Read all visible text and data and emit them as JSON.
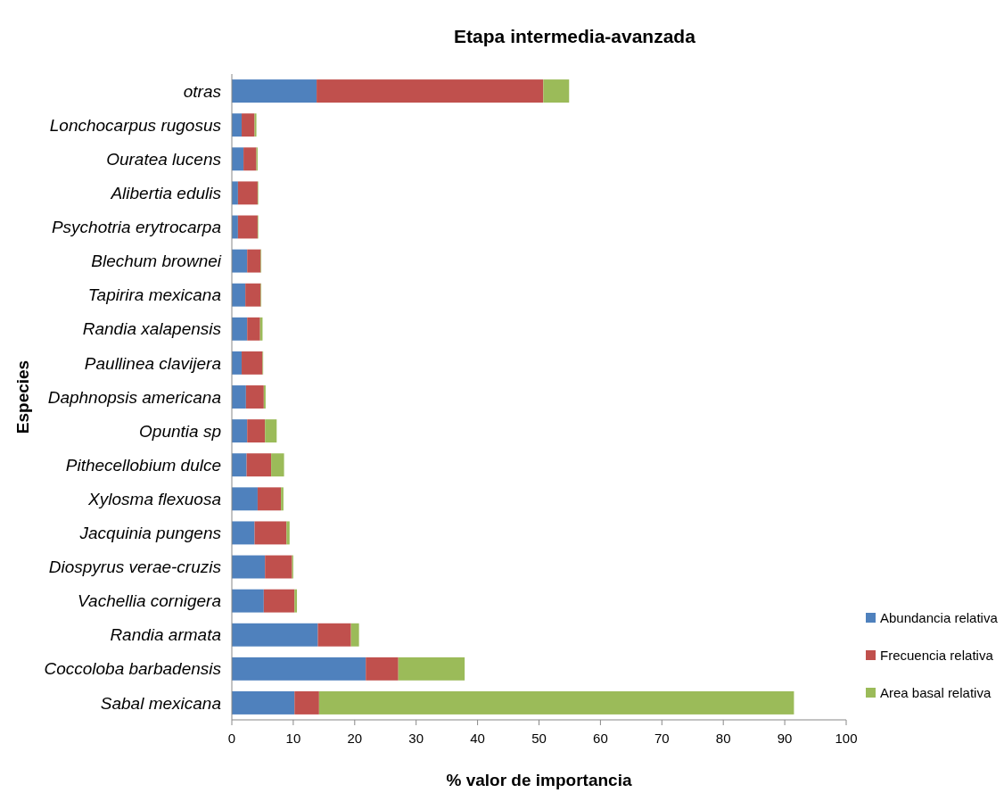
{
  "chart_data": {
    "type": "bar",
    "orientation": "horizontal",
    "stacked": true,
    "title": "Etapa intermedia-avanzada",
    "xlabel": "% valor de importancia",
    "ylabel": "Especies",
    "categories": [
      "otras",
      "Lonchocarpus rugosus",
      "Ouratea lucens",
      "Alibertia edulis",
      "Psychotria erytrocarpa",
      "Blechum brownei",
      "Tapirira mexicana",
      "Randia xalapensis",
      "Paullinea clavijera",
      "Daphnopsis americana",
      "Opuntia sp",
      "Pithecellobium dulce",
      "Xylosma flexuosa",
      "Jacquinia pungens",
      "Diospyrus verae-cruzis",
      "Vachellia cornigera",
      "Randia armata",
      "Coccoloba barbadensis",
      "Sabal mexicana"
    ],
    "series": [
      {
        "name": "Abundancia relativa",
        "color": "#4f81bd",
        "values": [
          13.8,
          1.6,
          1.9,
          1.0,
          1.0,
          2.5,
          2.2,
          2.5,
          1.6,
          2.3,
          2.5,
          2.4,
          4.2,
          3.7,
          5.4,
          5.2,
          14.0,
          21.8,
          10.2
        ]
      },
      {
        "name": "Frecuencia relativa",
        "color": "#c0504d",
        "values": [
          36.9,
          2.1,
          2.1,
          3.2,
          3.2,
          2.2,
          2.5,
          2.1,
          3.4,
          2.9,
          2.9,
          4.0,
          3.8,
          5.2,
          4.4,
          5.0,
          5.4,
          5.3,
          4.0
        ]
      },
      {
        "name": "Area basal relativa",
        "color": "#9bbb59",
        "values": [
          4.2,
          0.3,
          0.2,
          0.1,
          0.1,
          0.1,
          0.1,
          0.4,
          0.1,
          0.3,
          1.9,
          2.1,
          0.4,
          0.5,
          0.2,
          0.4,
          1.3,
          10.8,
          77.3
        ]
      }
    ],
    "xlim": [
      0,
      100
    ],
    "xticks": [
      0,
      10,
      20,
      30,
      40,
      50,
      60,
      70,
      80,
      90,
      100
    ],
    "legend": "bottom right"
  }
}
